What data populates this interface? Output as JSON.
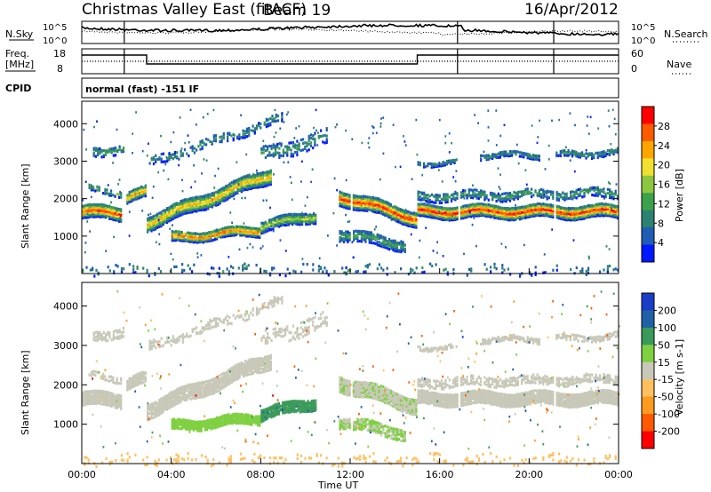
{
  "header": {
    "title": "Christmas Valley East (fitACF)",
    "beam": "Beam 19",
    "date": "16/Apr/2012"
  },
  "nsky_panel": {
    "left_label": "N.Sky",
    "right_label": "N.Search",
    "left_ticks": [
      "10^5",
      "10^0"
    ],
    "right_ticks": [
      "10^5",
      "10^0"
    ]
  },
  "freq_panel": {
    "left_label_line1": "Freq.",
    "left_label_line2": "[MHz]",
    "right_label": "Nave",
    "left_ticks": [
      "18",
      "8"
    ],
    "right_ticks": [
      "60",
      "0"
    ]
  },
  "cpid": {
    "label": "CPID",
    "mode": "normal (fast) -151 IF"
  },
  "colors": {
    "power_scale": [
      "#0018ff",
      "#1f5db5",
      "#2c8272",
      "#3ba14a",
      "#8dc63f",
      "#f0e030",
      "#ffa500",
      "#ff5a00",
      "#ff0000"
    ],
    "velocity_scale": [
      "#ff0000",
      "#ff5a00",
      "#ff9a20",
      "#ffc060",
      "#c8c8b8",
      "#7ed040",
      "#3a9a5a",
      "#2060a8",
      "#1a3dc8"
    ]
  },
  "chart_data": [
    {
      "type": "heatmap",
      "name": "power",
      "ylabel": "Slant Range [km]",
      "ylim": [
        0,
        4600
      ],
      "yticks": [
        1000,
        2000,
        3000,
        4000
      ],
      "xlim": [
        0,
        24
      ],
      "colorbar_label": "Power [dB]",
      "colorbar_ticks": [
        "28",
        "24",
        "20",
        "16",
        "12",
        "8",
        "4"
      ],
      "colorbar_range": [
        0,
        30
      ]
    },
    {
      "type": "heatmap",
      "name": "velocity",
      "ylabel": "Slant Range [km]",
      "ylim": [
        0,
        4600
      ],
      "yticks": [
        1000,
        2000,
        3000,
        4000
      ],
      "xlim": [
        0,
        24
      ],
      "colorbar_label": "Velocity [m s-1]",
      "colorbar_ticks": [
        "200",
        "100",
        "50",
        "15",
        "-15",
        "-50",
        "-100",
        "-200"
      ],
      "colorbar_range": [
        -250,
        250
      ]
    }
  ],
  "xaxis": {
    "label": "Time UT",
    "ticks": [
      "00:00",
      "04:00",
      "08:00",
      "12:00",
      "16:00",
      "20:00",
      "00:00"
    ]
  }
}
